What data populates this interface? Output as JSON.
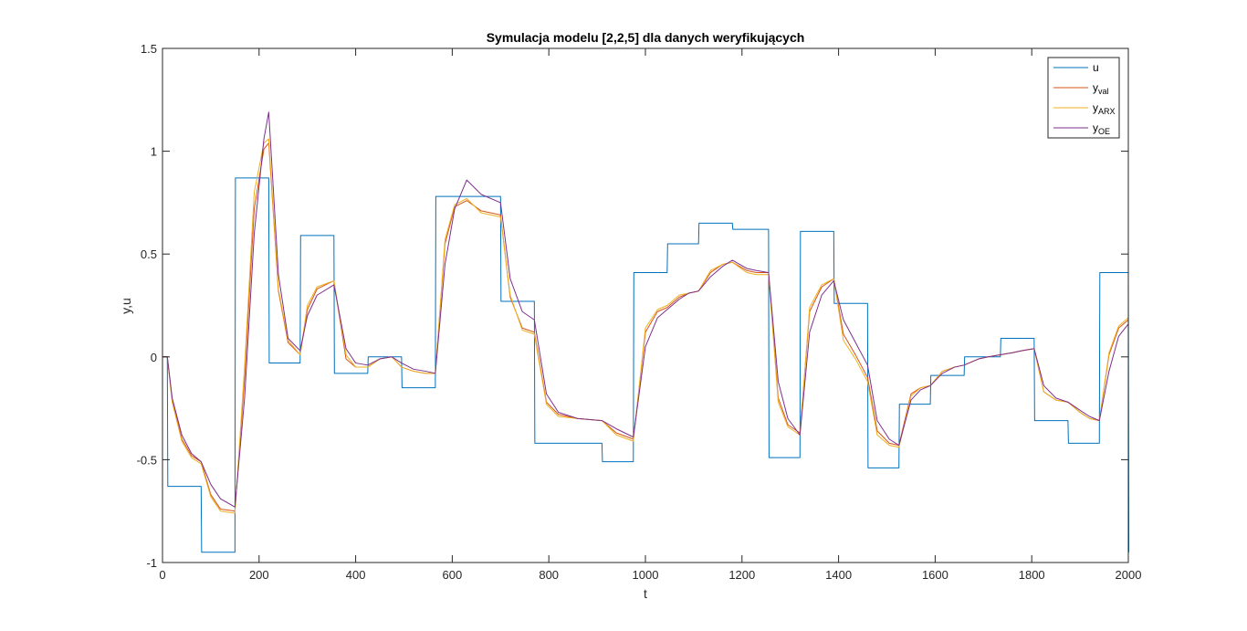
{
  "chart_data": {
    "type": "line",
    "title": "Symulacja modelu [2,2,5] dla danych weryfikujących",
    "xlabel": "t",
    "ylabel": "y,u",
    "xlim": [
      0,
      2000
    ],
    "ylim": [
      -1,
      1.5
    ],
    "xticks": [
      0,
      200,
      400,
      600,
      800,
      1000,
      1200,
      1400,
      1600,
      1800,
      2000
    ],
    "yticks": [
      -1,
      -0.5,
      0,
      0.5,
      1,
      1.5
    ],
    "xtick_labels": [
      "0",
      "200",
      "400",
      "600",
      "800",
      "1000",
      "1200",
      "1400",
      "1600",
      "1800",
      "2000"
    ],
    "ytick_labels": [
      "-1",
      "-0.5",
      "0",
      "0.5",
      "1",
      "1.5"
    ],
    "grid": false,
    "legend_position": "top-right",
    "series": [
      {
        "name": "u",
        "legend": {
          "main": "u",
          "sub": ""
        },
        "color": "#0072BD",
        "x": [
          0,
          10,
          11,
          80,
          81,
          150,
          151,
          220,
          221,
          285,
          286,
          355,
          356,
          425,
          426,
          495,
          496,
          565,
          566,
          700,
          701,
          770,
          771,
          910,
          911,
          975,
          976,
          1045,
          1046,
          1110,
          1111,
          1180,
          1181,
          1255,
          1256,
          1320,
          1321,
          1390,
          1391,
          1460,
          1461,
          1525,
          1526,
          1590,
          1591,
          1660,
          1661,
          1735,
          1736,
          1805,
          1806,
          1875,
          1876,
          1940,
          1941,
          2000,
          2001
        ],
        "y": [
          0,
          0,
          -0.63,
          -0.63,
          -0.95,
          -0.95,
          0.87,
          0.87,
          -0.03,
          -0.03,
          0.59,
          0.59,
          -0.08,
          -0.08,
          0,
          0,
          -0.15,
          -0.15,
          0.78,
          0.78,
          0.27,
          0.27,
          -0.42,
          -0.42,
          -0.51,
          -0.51,
          0.41,
          0.41,
          0.55,
          0.55,
          0.65,
          0.65,
          0.62,
          0.62,
          -0.49,
          -0.49,
          0.61,
          0.61,
          0.26,
          0.26,
          -0.54,
          -0.54,
          -0.23,
          -0.23,
          -0.09,
          -0.09,
          0,
          0,
          0.09,
          0.09,
          -0.31,
          -0.31,
          -0.42,
          -0.42,
          0.41,
          0.41,
          -0.95
        ]
      },
      {
        "name": "yval",
        "legend": {
          "main": "y",
          "sub": "val"
        },
        "color": "#D95319",
        "x": [
          0,
          10,
          20,
          40,
          60,
          80,
          100,
          120,
          150,
          170,
          190,
          210,
          220,
          240,
          260,
          285,
          300,
          320,
          355,
          380,
          400,
          425,
          450,
          475,
          495,
          520,
          545,
          565,
          585,
          605,
          630,
          660,
          700,
          720,
          745,
          770,
          795,
          820,
          860,
          910,
          940,
          975,
          1000,
          1025,
          1045,
          1070,
          1090,
          1110,
          1135,
          1160,
          1180,
          1210,
          1230,
          1255,
          1275,
          1295,
          1320,
          1340,
          1365,
          1390,
          1410,
          1435,
          1460,
          1480,
          1505,
          1525,
          1550,
          1570,
          1590,
          1615,
          1640,
          1660,
          1690,
          1710,
          1735,
          1760,
          1780,
          1805,
          1825,
          1850,
          1875,
          1900,
          1920,
          1940,
          1960,
          1980,
          2000
        ],
        "y": [
          0,
          0,
          -0.21,
          -0.4,
          -0.48,
          -0.51,
          -0.67,
          -0.74,
          -0.75,
          -0.1,
          0.72,
          1.01,
          1.04,
          0.32,
          0.07,
          0.01,
          0.23,
          0.33,
          0.37,
          -0.01,
          -0.05,
          -0.05,
          -0.01,
          0.0,
          -0.05,
          -0.07,
          -0.08,
          -0.08,
          0.55,
          0.73,
          0.76,
          0.71,
          0.69,
          0.29,
          0.14,
          0.12,
          -0.22,
          -0.28,
          -0.3,
          -0.31,
          -0.37,
          -0.4,
          0.12,
          0.22,
          0.24,
          0.29,
          0.31,
          0.32,
          0.41,
          0.45,
          0.46,
          0.42,
          0.41,
          0.41,
          -0.2,
          -0.33,
          -0.37,
          0.22,
          0.34,
          0.38,
          0.11,
          0.01,
          -0.1,
          -0.36,
          -0.42,
          -0.43,
          -0.18,
          -0.15,
          -0.14,
          -0.07,
          -0.05,
          -0.04,
          -0.01,
          0.0,
          0.01,
          0.02,
          0.03,
          0.04,
          -0.17,
          -0.21,
          -0.22,
          -0.27,
          -0.3,
          -0.31,
          0.01,
          0.14,
          0.18
        ]
      },
      {
        "name": "yARX",
        "legend": {
          "main": "y",
          "sub": "ARX"
        },
        "color": "#EDB120",
        "x": [
          0,
          10,
          20,
          40,
          60,
          80,
          100,
          120,
          150,
          170,
          190,
          210,
          220,
          240,
          260,
          285,
          300,
          320,
          355,
          380,
          400,
          425,
          450,
          475,
          495,
          520,
          545,
          565,
          585,
          605,
          630,
          660,
          700,
          720,
          745,
          770,
          795,
          820,
          860,
          910,
          940,
          975,
          1000,
          1025,
          1045,
          1070,
          1090,
          1110,
          1135,
          1160,
          1180,
          1210,
          1230,
          1255,
          1275,
          1295,
          1320,
          1340,
          1365,
          1390,
          1410,
          1435,
          1460,
          1480,
          1505,
          1525,
          1550,
          1570,
          1590,
          1615,
          1640,
          1660,
          1690,
          1710,
          1735,
          1760,
          1780,
          1805,
          1825,
          1850,
          1875,
          1900,
          1920,
          1940,
          1960,
          1980,
          2000
        ],
        "y": [
          0,
          0,
          -0.22,
          -0.41,
          -0.49,
          -0.52,
          -0.68,
          -0.75,
          -0.76,
          -0.05,
          0.8,
          1.04,
          1.06,
          0.33,
          0.08,
          0.01,
          0.25,
          0.34,
          0.37,
          0.01,
          -0.05,
          -0.05,
          -0.01,
          0.0,
          -0.05,
          -0.07,
          -0.08,
          -0.08,
          0.57,
          0.74,
          0.77,
          0.7,
          0.68,
          0.3,
          0.13,
          0.11,
          -0.23,
          -0.29,
          -0.3,
          -0.31,
          -0.38,
          -0.41,
          0.14,
          0.23,
          0.25,
          0.3,
          0.31,
          0.32,
          0.42,
          0.45,
          0.46,
          0.41,
          0.4,
          0.4,
          -0.22,
          -0.34,
          -0.38,
          0.24,
          0.35,
          0.38,
          0.08,
          -0.01,
          -0.12,
          -0.38,
          -0.43,
          -0.44,
          -0.19,
          -0.15,
          -0.14,
          -0.07,
          -0.05,
          -0.04,
          -0.01,
          0.0,
          0.01,
          0.02,
          0.03,
          0.04,
          -0.17,
          -0.21,
          -0.22,
          -0.27,
          -0.3,
          -0.31,
          0.02,
          0.15,
          0.19
        ]
      },
      {
        "name": "yOE",
        "legend": {
          "main": "y",
          "sub": "OE"
        },
        "color": "#7E2F8E",
        "x": [
          0,
          10,
          20,
          40,
          60,
          80,
          100,
          120,
          150,
          170,
          190,
          210,
          220,
          240,
          260,
          285,
          300,
          320,
          355,
          380,
          400,
          425,
          450,
          475,
          495,
          520,
          545,
          565,
          585,
          605,
          630,
          660,
          700,
          720,
          745,
          770,
          795,
          820,
          860,
          910,
          940,
          975,
          1000,
          1025,
          1045,
          1070,
          1090,
          1110,
          1135,
          1160,
          1180,
          1210,
          1230,
          1255,
          1275,
          1295,
          1320,
          1340,
          1365,
          1390,
          1410,
          1435,
          1460,
          1480,
          1505,
          1525,
          1550,
          1570,
          1590,
          1615,
          1640,
          1660,
          1690,
          1710,
          1735,
          1760,
          1780,
          1805,
          1825,
          1850,
          1875,
          1900,
          1920,
          1940,
          1960,
          1980,
          2000
        ],
        "y": [
          0,
          0,
          -0.2,
          -0.38,
          -0.47,
          -0.51,
          -0.62,
          -0.69,
          -0.73,
          -0.2,
          0.6,
          1.06,
          1.19,
          0.4,
          0.09,
          0.03,
          0.2,
          0.3,
          0.35,
          0.04,
          -0.03,
          -0.04,
          -0.01,
          0.0,
          -0.03,
          -0.06,
          -0.07,
          -0.08,
          0.45,
          0.72,
          0.86,
          0.79,
          0.75,
          0.38,
          0.22,
          0.18,
          -0.18,
          -0.27,
          -0.3,
          -0.31,
          -0.35,
          -0.39,
          0.05,
          0.19,
          0.23,
          0.28,
          0.31,
          0.32,
          0.39,
          0.44,
          0.47,
          0.43,
          0.42,
          0.41,
          -0.12,
          -0.3,
          -0.38,
          0.12,
          0.3,
          0.37,
          0.18,
          0.07,
          -0.04,
          -0.31,
          -0.4,
          -0.43,
          -0.21,
          -0.16,
          -0.14,
          -0.08,
          -0.05,
          -0.04,
          -0.01,
          0.0,
          0.01,
          0.02,
          0.03,
          0.04,
          -0.14,
          -0.2,
          -0.22,
          -0.26,
          -0.29,
          -0.31,
          -0.07,
          0.1,
          0.16
        ]
      }
    ]
  }
}
